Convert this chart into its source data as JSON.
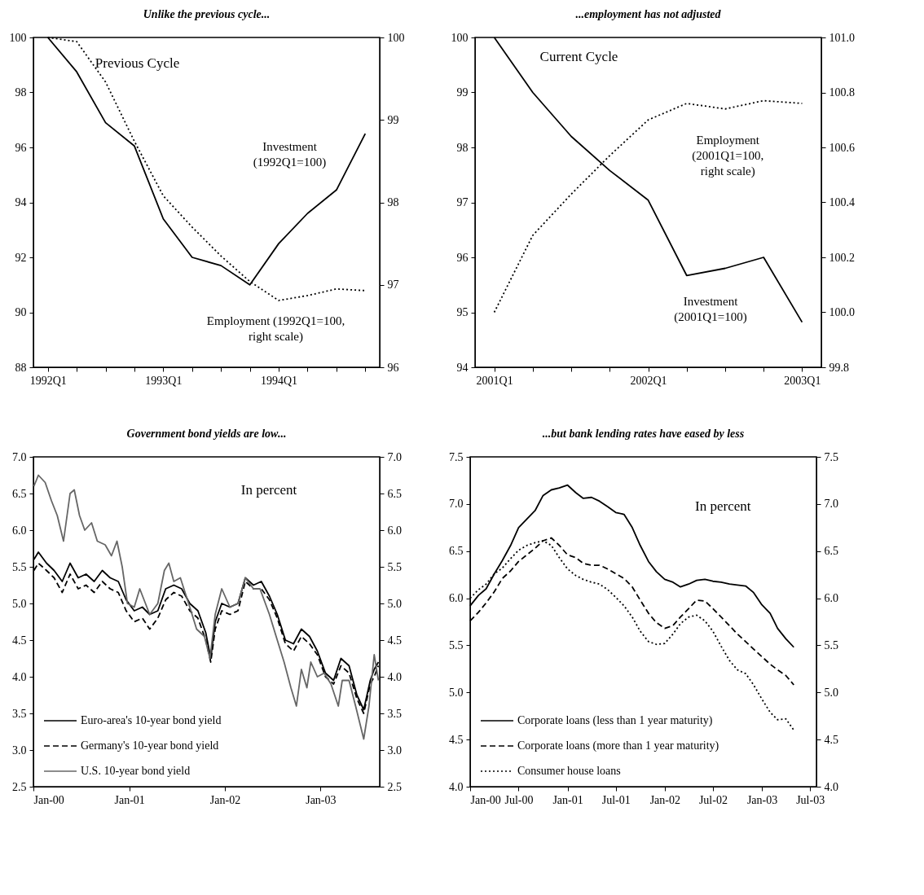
{
  "chart_data": [
    {
      "type": "line",
      "title": "Unlike the previous cycle...",
      "annotations": [
        "Previous Cycle"
      ],
      "categories": [
        "1992Q1",
        null,
        null,
        null,
        "1993Q1",
        null,
        null,
        null,
        "1994Q1",
        null,
        null,
        null
      ],
      "ylim": [
        88,
        100
      ],
      "yticks": [
        88,
        90,
        92,
        94,
        96,
        98,
        100
      ],
      "y2lim": [
        96,
        100
      ],
      "y2ticks": [
        96,
        97,
        98,
        99,
        100
      ],
      "series": [
        {
          "name": "Investment (1992Q1=100)",
          "color": "#000000",
          "line_style": "solid",
          "values": [
            100,
            98.75,
            96.9,
            96.05,
            93.4,
            92.0,
            91.7,
            91.0,
            92.5,
            93.6,
            94.45,
            96.5
          ]
        },
        {
          "name": "Employment (1992Q1=100, right scale)",
          "color": "#000000",
          "line_style": "dotted",
          "axis": "y2",
          "values": [
            100,
            99.95,
            99.46,
            98.74,
            98.08,
            97.7,
            97.35,
            97.04,
            96.81,
            96.87,
            96.95,
            96.93
          ]
        }
      ]
    },
    {
      "type": "line",
      "title": "...employment has not adjusted",
      "annotations": [
        "Current Cycle"
      ],
      "categories": [
        "2001Q1",
        null,
        null,
        null,
        "2002Q1",
        null,
        null,
        null,
        "2003Q1"
      ],
      "ylim": [
        94,
        100
      ],
      "yticks": [
        94,
        95,
        96,
        97,
        98,
        99,
        100
      ],
      "y2lim": [
        99.8,
        101
      ],
      "y2ticks": [
        {
          "value": 99.8,
          "label": "99.8"
        },
        {
          "value": 100,
          "label": "100.0"
        },
        {
          "value": 100.2,
          "label": "100.2"
        },
        {
          "value": 100.4,
          "label": "100.4"
        },
        {
          "value": 100.6,
          "label": "100.6"
        },
        {
          "value": 100.8,
          "label": "100.8"
        },
        {
          "value": 101,
          "label": "101.0"
        }
      ],
      "series": [
        {
          "name": "Investment (2001Q1=100)",
          "color": "#000000",
          "line_style": "solid",
          "values": [
            100,
            99.0,
            98.2,
            97.58,
            97.04,
            95.67,
            95.8,
            96.0,
            94.82
          ]
        },
        {
          "name": "Employment (2001Q1=100, right scale)",
          "color": "#000000",
          "line_style": "dotted",
          "axis": "y2",
          "values": [
            100.0,
            100.28,
            100.43,
            100.57,
            100.7,
            100.76,
            100.74,
            100.77,
            100.76
          ]
        }
      ]
    },
    {
      "type": "line",
      "title": "Government bond yields are low...",
      "annotations": [
        "In percent"
      ],
      "legend": "bottom left",
      "xlim": [
        "2000-01-01",
        "2003-08-15"
      ],
      "xticks": [
        {
          "value": "2000-01",
          "label": "Jan-00"
        },
        {
          "value": "2001-01",
          "label": "Jan-01"
        },
        {
          "value": "2002-01",
          "label": "Jan-02"
        },
        {
          "value": "2003-01",
          "label": "Jan-03"
        }
      ],
      "ylim": [
        2.5,
        7.0
      ],
      "yticks": [
        {
          "value": 2.5,
          "label": "2.5"
        },
        {
          "value": 3,
          "label": "3.0"
        },
        {
          "value": 3.5,
          "label": "3.5"
        },
        {
          "value": 4,
          "label": "4.0"
        },
        {
          "value": 4.5,
          "label": "4.5"
        },
        {
          "value": 5,
          "label": "5.0"
        },
        {
          "value": 5.5,
          "label": "5.5"
        },
        {
          "value": 6,
          "label": "6.0"
        },
        {
          "value": 6.5,
          "label": "6.5"
        },
        {
          "value": 7,
          "label": "7.0"
        }
      ],
      "y2lim": [
        2.5,
        7.0
      ],
      "y2ticks": [
        {
          "value": 2.5,
          "label": "2.5"
        },
        {
          "value": 3,
          "label": "3.0"
        },
        {
          "value": 3.5,
          "label": "3.5"
        },
        {
          "value": 4,
          "label": "4.0"
        },
        {
          "value": 4.5,
          "label": "4.5"
        },
        {
          "value": 5,
          "label": "5.0"
        },
        {
          "value": 5.5,
          "label": "5.5"
        },
        {
          "value": 6,
          "label": "6.0"
        },
        {
          "value": 6.5,
          "label": "6.5"
        },
        {
          "value": 7,
          "label": "7.0"
        }
      ],
      "series": [
        {
          "name": "Euro-area's 10-year bond yield",
          "color": "#000000",
          "line_style": "solid",
          "x": [
            "2000-01-03",
            "2000-01-20",
            "2000-02-20",
            "2000-03-20",
            "2000-04-20",
            "2000-05-20",
            "2000-06-20",
            "2000-07-20",
            "2000-08-20",
            "2000-09-20",
            "2000-10-20",
            "2000-11-20",
            "2000-12-20",
            "2001-01-20",
            "2001-02-20",
            "2001-03-20",
            "2001-04-20",
            "2001-05-20",
            "2001-06-20",
            "2001-07-20",
            "2001-08-20",
            "2001-09-20",
            "2001-10-20",
            "2001-11-08",
            "2001-11-25",
            "2001-12-20",
            "2002-01-20",
            "2002-02-20",
            "2002-03-20",
            "2002-04-20",
            "2002-05-20",
            "2002-06-20",
            "2002-07-20",
            "2002-08-20",
            "2002-09-20",
            "2002-10-20",
            "2002-11-20",
            "2002-12-20",
            "2003-01-20",
            "2003-02-20",
            "2003-03-20",
            "2003-04-20",
            "2003-05-20",
            "2003-06-15",
            "2003-07-10",
            "2003-07-25",
            "2003-08-10"
          ],
          "values": [
            5.6,
            5.7,
            5.55,
            5.45,
            5.3,
            5.55,
            5.35,
            5.4,
            5.3,
            5.45,
            5.35,
            5.3,
            5.05,
            4.9,
            4.95,
            4.85,
            4.9,
            5.2,
            5.25,
            5.2,
            5.0,
            4.9,
            4.6,
            4.25,
            4.75,
            5.0,
            4.95,
            5.0,
            5.35,
            5.25,
            5.3,
            5.1,
            4.85,
            4.5,
            4.45,
            4.65,
            4.55,
            4.35,
            4.05,
            3.95,
            4.25,
            4.15,
            3.75,
            3.55,
            3.95,
            4.1,
            4.2
          ]
        },
        {
          "name": "Germany's 10-year bond yield",
          "color": "#000000",
          "line_style": "dashed",
          "x": [
            "2000-01-03",
            "2000-01-20",
            "2000-02-20",
            "2000-03-20",
            "2000-04-20",
            "2000-05-20",
            "2000-06-20",
            "2000-07-20",
            "2000-08-20",
            "2000-09-20",
            "2000-10-20",
            "2000-11-20",
            "2000-12-20",
            "2001-01-20",
            "2001-02-20",
            "2001-03-20",
            "2001-04-20",
            "2001-05-20",
            "2001-06-20",
            "2001-07-20",
            "2001-08-20",
            "2001-09-20",
            "2001-10-20",
            "2001-11-08",
            "2001-11-25",
            "2001-12-20",
            "2002-01-20",
            "2002-02-20",
            "2002-03-20",
            "2002-04-20",
            "2002-05-20",
            "2002-06-20",
            "2002-07-20",
            "2002-08-20",
            "2002-09-20",
            "2002-10-20",
            "2002-11-20",
            "2002-12-20",
            "2003-01-20",
            "2003-02-20",
            "2003-03-20",
            "2003-04-20",
            "2003-05-20",
            "2003-06-15",
            "2003-07-10",
            "2003-07-25",
            "2003-08-10"
          ],
          "values": [
            5.45,
            5.55,
            5.45,
            5.35,
            5.15,
            5.4,
            5.2,
            5.25,
            5.15,
            5.3,
            5.2,
            5.15,
            4.9,
            4.75,
            4.8,
            4.65,
            4.8,
            5.05,
            5.15,
            5.1,
            4.9,
            4.8,
            4.5,
            4.2,
            4.65,
            4.9,
            4.85,
            4.9,
            5.3,
            5.2,
            5.2,
            5.05,
            4.8,
            4.45,
            4.35,
            4.55,
            4.45,
            4.3,
            4.0,
            3.9,
            4.15,
            4.05,
            3.7,
            3.5,
            3.9,
            4.0,
            4.15
          ]
        },
        {
          "name": "U.S. 10-year bond yield",
          "color": "#666666",
          "line_style": "solid",
          "x": [
            "2000-01-03",
            "2000-01-20",
            "2000-02-15",
            "2000-03-10",
            "2000-04-01",
            "2000-04-25",
            "2000-05-20",
            "2000-06-05",
            "2000-06-25",
            "2000-07-15",
            "2000-08-10",
            "2000-09-01",
            "2000-10-01",
            "2000-10-25",
            "2000-11-15",
            "2000-12-05",
            "2000-12-25",
            "2001-01-20",
            "2001-02-10",
            "2001-03-20",
            "2001-04-20",
            "2001-05-15",
            "2001-06-01",
            "2001-06-20",
            "2001-07-15",
            "2001-08-20",
            "2001-09-15",
            "2001-10-15",
            "2001-11-05",
            "2001-11-25",
            "2001-12-20",
            "2002-01-20",
            "2002-02-20",
            "2002-03-20",
            "2002-04-20",
            "2002-05-15",
            "2002-06-20",
            "2002-07-20",
            "2002-08-15",
            "2002-09-10",
            "2002-10-01",
            "2002-10-20",
            "2002-11-10",
            "2002-11-25",
            "2002-12-20",
            "2003-01-15",
            "2003-02-10",
            "2003-03-10",
            "2003-03-25",
            "2003-04-20",
            "2003-05-15",
            "2003-06-15",
            "2003-07-05",
            "2003-07-25",
            "2003-08-10"
          ],
          "values": [
            6.6,
            6.75,
            6.65,
            6.4,
            6.2,
            5.85,
            6.5,
            6.55,
            6.2,
            6.0,
            6.1,
            5.85,
            5.8,
            5.65,
            5.85,
            5.5,
            5.0,
            4.95,
            5.2,
            4.85,
            5.0,
            5.45,
            5.55,
            5.3,
            5.35,
            4.95,
            4.65,
            4.55,
            4.25,
            4.85,
            5.2,
            4.95,
            5.0,
            5.35,
            5.2,
            5.2,
            4.85,
            4.5,
            4.2,
            3.85,
            3.6,
            4.1,
            3.85,
            4.2,
            4.0,
            4.05,
            3.9,
            3.6,
            3.95,
            3.95,
            3.6,
            3.15,
            3.6,
            4.3,
            3.95
          ]
        }
      ]
    },
    {
      "type": "line",
      "title": "...but bank lending rates have eased by less",
      "annotations": [
        "In percent"
      ],
      "legend": "bottom left",
      "x": [
        "2000-01",
        "2000-02",
        "2000-03",
        "2000-04",
        "2000-05",
        "2000-06",
        "2000-07",
        "2000-08",
        "2000-09",
        "2000-10",
        "2000-11",
        "2000-12",
        "2001-01",
        "2001-02",
        "2001-03",
        "2001-04",
        "2001-05",
        "2001-06",
        "2001-07",
        "2001-08",
        "2001-09",
        "2001-10",
        "2001-11",
        "2001-12",
        "2002-01",
        "2002-02",
        "2002-03",
        "2002-04",
        "2002-05",
        "2002-06",
        "2002-07",
        "2002-08",
        "2002-09",
        "2002-10",
        "2002-11",
        "2002-12",
        "2003-01",
        "2003-02",
        "2003-03",
        "2003-04",
        "2003-05"
      ],
      "xlim": [
        "2000-01-01",
        "2003-07-25"
      ],
      "xticks": [
        {
          "value": "2000-01",
          "label": "Jan-00"
        },
        {
          "value": "2000-07",
          "label": "Jul-00"
        },
        {
          "value": "2001-01",
          "label": "Jan-01"
        },
        {
          "value": "2001-07",
          "label": "Jul-01"
        },
        {
          "value": "2002-01",
          "label": "Jan-02"
        },
        {
          "value": "2002-07",
          "label": "Jul-02"
        },
        {
          "value": "2003-01",
          "label": "Jan-03"
        },
        {
          "value": "2003-07",
          "label": "Jul-03"
        }
      ],
      "ylim": [
        4.0,
        7.5
      ],
      "yticks": [
        {
          "value": 4,
          "label": "4.0"
        },
        {
          "value": 4.5,
          "label": "4.5"
        },
        {
          "value": 5,
          "label": "5.0"
        },
        {
          "value": 5.5,
          "label": "5.5"
        },
        {
          "value": 6,
          "label": "6.0"
        },
        {
          "value": 6.5,
          "label": "6.5"
        },
        {
          "value": 7,
          "label": "7.0"
        },
        {
          "value": 7.5,
          "label": "7.5"
        }
      ],
      "y2lim": [
        4.0,
        7.5
      ],
      "y2ticks": [
        {
          "value": 4,
          "label": "4.0"
        },
        {
          "value": 4.5,
          "label": "4.5"
        },
        {
          "value": 5,
          "label": "5.0"
        },
        {
          "value": 5.5,
          "label": "5.5"
        },
        {
          "value": 6,
          "label": "6.0"
        },
        {
          "value": 6.5,
          "label": "6.5"
        },
        {
          "value": 7,
          "label": "7.0"
        },
        {
          "value": 7.5,
          "label": "7.5"
        }
      ],
      "series": [
        {
          "name": "Corporate loans (less than 1 year maturity)",
          "color": "#000000",
          "line_style": "solid",
          "values": [
            5.92,
            6.03,
            6.1,
            6.26,
            6.4,
            6.56,
            6.75,
            6.84,
            6.93,
            7.09,
            7.15,
            7.17,
            7.2,
            7.12,
            7.06,
            7.07,
            7.03,
            6.97,
            6.91,
            6.89,
            6.75,
            6.56,
            6.39,
            6.28,
            6.2,
            6.17,
            6.12,
            6.15,
            6.19,
            6.2,
            6.18,
            6.17,
            6.15,
            6.14,
            6.13,
            6.06,
            5.93,
            5.84,
            5.68,
            5.57,
            5.48
          ]
        },
        {
          "name": "Corporate loans (more than 1 year maturity)",
          "color": "#000000",
          "line_style": "dashed",
          "values": [
            5.76,
            5.85,
            5.95,
            6.07,
            6.21,
            6.29,
            6.39,
            6.46,
            6.53,
            6.61,
            6.64,
            6.56,
            6.46,
            6.43,
            6.37,
            6.35,
            6.35,
            6.31,
            6.26,
            6.21,
            6.12,
            5.98,
            5.84,
            5.74,
            5.68,
            5.71,
            5.8,
            5.89,
            5.98,
            5.97,
            5.89,
            5.8,
            5.71,
            5.62,
            5.54,
            5.46,
            5.38,
            5.3,
            5.24,
            5.18,
            5.08
          ]
        },
        {
          "name": "Consumer house loans",
          "color": "#000000",
          "line_style": "dotted",
          "values": [
            6.0,
            6.09,
            6.15,
            6.26,
            6.32,
            6.42,
            6.51,
            6.56,
            6.59,
            6.61,
            6.56,
            6.43,
            6.31,
            6.24,
            6.2,
            6.17,
            6.15,
            6.09,
            6.01,
            5.92,
            5.8,
            5.65,
            5.54,
            5.51,
            5.52,
            5.62,
            5.73,
            5.8,
            5.82,
            5.76,
            5.65,
            5.49,
            5.34,
            5.24,
            5.2,
            5.08,
            4.93,
            4.79,
            4.71,
            4.72,
            4.6
          ]
        }
      ]
    }
  ]
}
